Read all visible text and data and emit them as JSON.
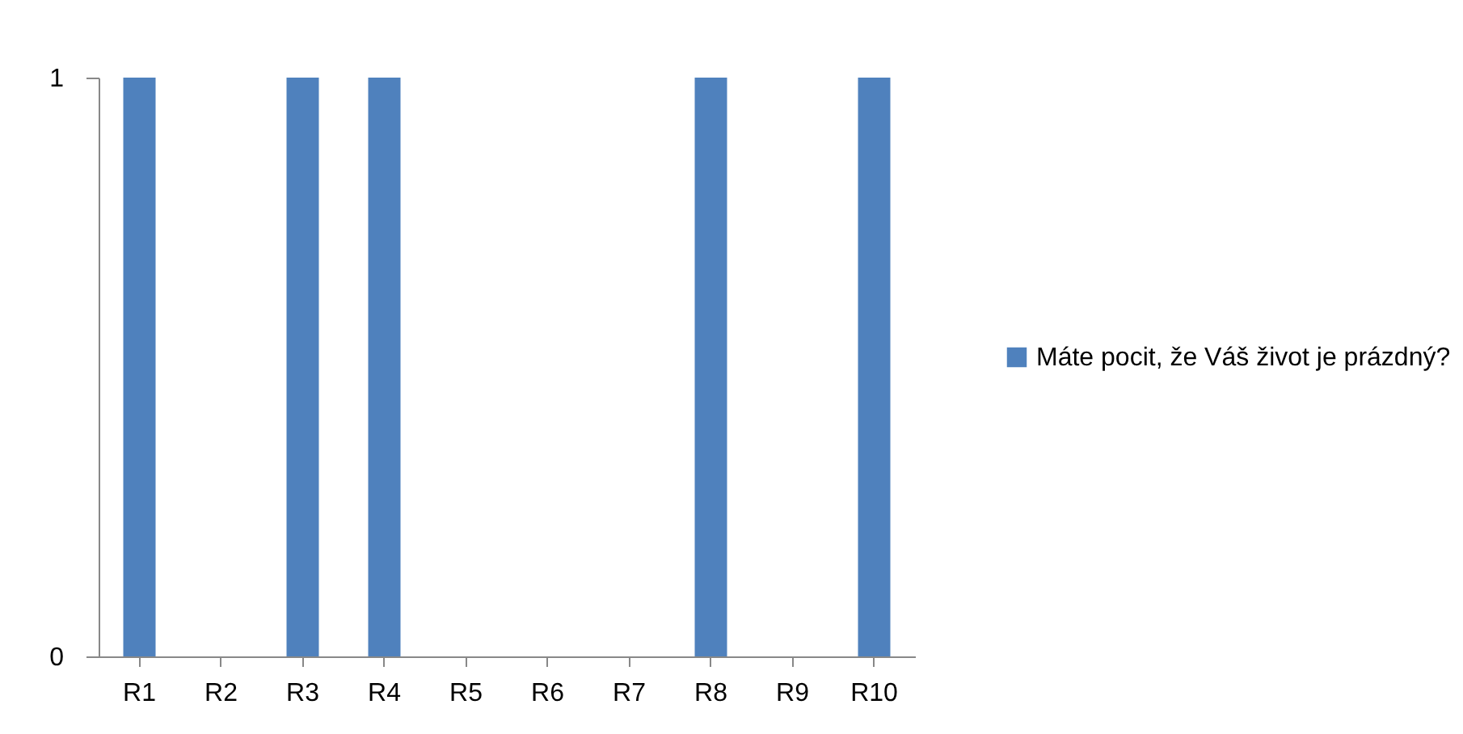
{
  "chart_data": {
    "type": "bar",
    "categories": [
      "R1",
      "R2",
      "R3",
      "R4",
      "R5",
      "R6",
      "R7",
      "R8",
      "R9",
      "R10"
    ],
    "series": [
      {
        "name": "Máte pocit, že Váš život je prázdný?",
        "color": "#4f81bd",
        "values": [
          1,
          0,
          1,
          1,
          0,
          0,
          0,
          1,
          0,
          1
        ]
      }
    ],
    "ylim": [
      0,
      1
    ],
    "yticks": [
      0,
      1
    ],
    "legend": "right"
  }
}
